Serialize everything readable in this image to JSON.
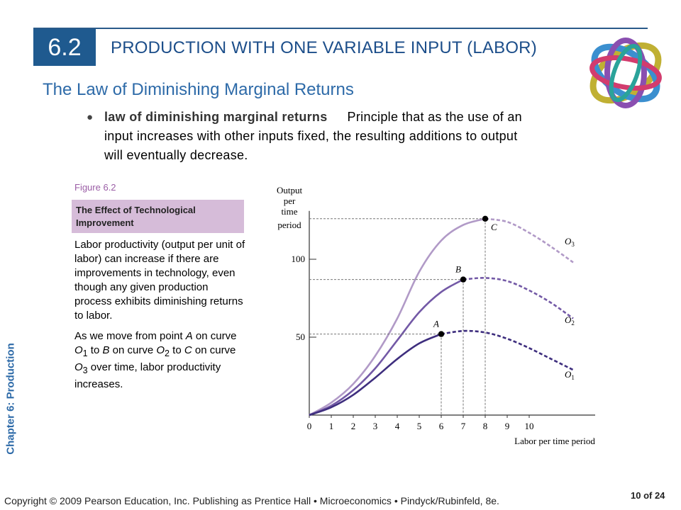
{
  "header": {
    "section_number": "6.2",
    "title": "PRODUCTION WITH ONE VARIABLE INPUT (LABOR)"
  },
  "subtitle": "The Law of Diminishing Marginal Returns",
  "definition": {
    "term": "law of diminishing marginal returns",
    "text": "Principle that as the use of an input increases with other inputs fixed, the resulting additions to output will eventually decrease."
  },
  "figure": {
    "label": "Figure 6.2",
    "title": "The Effect of Technological Improvement",
    "caption1": "Labor productivity (output per unit of labor) can increase if there are improvements in technology, even though any given production process exhibits diminishing returns to labor.",
    "caption2": {
      "t1": "As we move from point ",
      "a": "A",
      "t2": " on curve ",
      "o1": "O",
      "s1": "1",
      "t3": " to ",
      "b": "B",
      "t4": " on curve ",
      "o2": "O",
      "s2": "2",
      "t5": " to ",
      "c": "C",
      "t6": " on curve ",
      "o3": "O",
      "s3": "3",
      "t7": " over time, labor productivity increases."
    }
  },
  "chart_data": {
    "type": "line",
    "ylabel": [
      "Output",
      "per",
      "time",
      "period"
    ],
    "xlabel": "Labor per time period",
    "x_ticks": [
      "0",
      "1",
      "2",
      "3",
      "4",
      "5",
      "6",
      "7",
      "8",
      "9",
      "10"
    ],
    "y_ticks": [
      {
        "value": 50,
        "label": "50"
      },
      {
        "value": 100,
        "label": "100"
      }
    ],
    "xlim": [
      0,
      13
    ],
    "ylim": [
      0,
      131
    ],
    "series": [
      {
        "name": "O3",
        "sub": "3",
        "color": "#b19ac7",
        "points": [
          [
            0,
            0
          ],
          [
            1,
            8
          ],
          [
            2,
            20
          ],
          [
            3,
            38
          ],
          [
            4,
            62
          ],
          [
            5,
            92
          ],
          [
            6,
            112
          ],
          [
            7,
            122
          ],
          [
            8,
            126
          ],
          [
            9,
            124
          ],
          [
            10,
            117
          ],
          [
            11,
            108
          ],
          [
            12,
            98
          ]
        ],
        "solid_until": 8
      },
      {
        "name": "O2",
        "sub": "2",
        "color": "#7359a6",
        "points": [
          [
            0,
            0
          ],
          [
            1,
            6
          ],
          [
            2,
            16
          ],
          [
            3,
            30
          ],
          [
            4,
            48
          ],
          [
            5,
            66
          ],
          [
            6,
            79
          ],
          [
            7,
            87
          ],
          [
            8,
            88
          ],
          [
            9,
            86
          ],
          [
            10,
            80
          ],
          [
            11,
            72
          ],
          [
            12,
            62
          ]
        ],
        "solid_until": 7
      },
      {
        "name": "O1",
        "sub": "1",
        "color": "#3e2e7e",
        "points": [
          [
            0,
            0
          ],
          [
            1,
            5
          ],
          [
            2,
            13
          ],
          [
            3,
            24
          ],
          [
            4,
            36
          ],
          [
            5,
            46
          ],
          [
            6,
            52
          ],
          [
            7,
            54
          ],
          [
            8,
            53
          ],
          [
            9,
            49
          ],
          [
            10,
            43
          ],
          [
            11,
            36
          ],
          [
            12,
            29
          ]
        ],
        "solid_until": 6
      }
    ],
    "points": [
      {
        "label": "C",
        "x": 8,
        "y": 126
      },
      {
        "label": "B",
        "x": 7,
        "y": 87
      },
      {
        "label": "A",
        "x": 6,
        "y": 52
      }
    ],
    "curve_labels": [
      {
        "text": "O",
        "sub": "3"
      },
      {
        "text": "O",
        "sub": "2"
      },
      {
        "text": "O",
        "sub": "1"
      }
    ]
  },
  "sidebar": "Chapter 6: Production",
  "footer": "Copyright © 2009 Pearson Education, Inc. Publishing as Prentice Hall  •  Microeconomics  •  Pindyck/Rubinfeld, 8e.",
  "page": "10 of 24",
  "colors": {
    "accent": "#1f5a8f",
    "title": "#1c4e8a",
    "subtitle": "#2d6aa8",
    "figure_band": "#d6bcd9"
  },
  "icons": {
    "logo": "interlocking-rings-logo"
  }
}
